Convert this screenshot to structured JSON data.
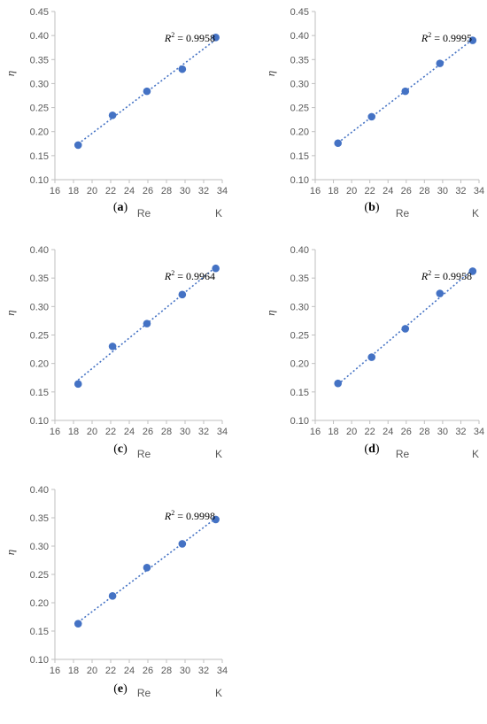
{
  "chart_data": [
    {
      "type": "scatter",
      "panel_label": "a",
      "xlabel": "Re",
      "x_unit": "K",
      "ylabel": "η",
      "xlim": [
        16,
        34
      ],
      "ylim": [
        0.1,
        0.45
      ],
      "x_ticks": [
        "16",
        "18",
        "20",
        "22",
        "24",
        "26",
        "28",
        "30",
        "32",
        "34"
      ],
      "y_ticks": [
        "0.10",
        "0.15",
        "0.20",
        "0.25",
        "0.30",
        "0.35",
        "0.40",
        "0.45"
      ],
      "trendline": "linear",
      "r2_prefix": "R",
      "r2_value": "2 = 0.9958",
      "x": [
        18.5,
        22.2,
        25.9,
        29.7,
        33.3
      ],
      "y": [
        0.172,
        0.234,
        0.284,
        0.33,
        0.396
      ]
    },
    {
      "type": "scatter",
      "panel_label": "b",
      "xlabel": "Re",
      "x_unit": "K",
      "ylabel": "η",
      "xlim": [
        16,
        34
      ],
      "ylim": [
        0.1,
        0.45
      ],
      "x_ticks": [
        "16",
        "18",
        "20",
        "22",
        "24",
        "26",
        "28",
        "30",
        "32",
        "34"
      ],
      "y_ticks": [
        "0.10",
        "0.15",
        "0.20",
        "0.25",
        "0.30",
        "0.35",
        "0.40",
        "0.45"
      ],
      "trendline": "linear",
      "r2_prefix": "R",
      "r2_value": "2 = 0.9995",
      "x": [
        18.5,
        22.2,
        25.9,
        29.7,
        33.3
      ],
      "y": [
        0.176,
        0.231,
        0.284,
        0.342,
        0.39
      ]
    },
    {
      "type": "scatter",
      "panel_label": "c",
      "xlabel": "Re",
      "x_unit": "K",
      "ylabel": "η",
      "xlim": [
        16,
        34
      ],
      "ylim": [
        0.1,
        0.4
      ],
      "x_ticks": [
        "16",
        "18",
        "20",
        "22",
        "24",
        "26",
        "28",
        "30",
        "32",
        "34"
      ],
      "y_ticks": [
        "0.10",
        "0.15",
        "0.20",
        "0.25",
        "0.30",
        "0.35",
        "0.40"
      ],
      "trendline": "linear",
      "r2_prefix": "R",
      "r2_value": "2 = 0.9964",
      "x": [
        18.5,
        22.2,
        25.9,
        29.7,
        33.3
      ],
      "y": [
        0.164,
        0.23,
        0.27,
        0.321,
        0.367
      ]
    },
    {
      "type": "scatter",
      "panel_label": "d",
      "xlabel": "Re",
      "x_unit": "K",
      "ylabel": "η",
      "xlim": [
        16,
        34
      ],
      "ylim": [
        0.1,
        0.4
      ],
      "x_ticks": [
        "16",
        "18",
        "20",
        "22",
        "24",
        "26",
        "28",
        "30",
        "32",
        "34"
      ],
      "y_ticks": [
        "0.10",
        "0.15",
        "0.20",
        "0.25",
        "0.30",
        "0.35",
        "0.40"
      ],
      "trendline": "linear",
      "r2_prefix": "R",
      "r2_value": "2 = 0.9958",
      "x": [
        18.5,
        22.2,
        25.9,
        29.7,
        33.3
      ],
      "y": [
        0.165,
        0.211,
        0.261,
        0.323,
        0.362
      ]
    },
    {
      "type": "scatter",
      "panel_label": "e",
      "xlabel": "Re",
      "x_unit": "K",
      "ylabel": "η",
      "xlim": [
        16,
        34
      ],
      "ylim": [
        0.1,
        0.4
      ],
      "x_ticks": [
        "16",
        "18",
        "20",
        "22",
        "24",
        "26",
        "28",
        "30",
        "32",
        "34"
      ],
      "y_ticks": [
        "0.10",
        "0.15",
        "0.20",
        "0.25",
        "0.30",
        "0.35",
        "0.40"
      ],
      "trendline": "linear",
      "r2_prefix": "R",
      "r2_value": "2 = 0.9998",
      "x": [
        18.5,
        22.2,
        25.9,
        29.7,
        33.3
      ],
      "y": [
        0.163,
        0.212,
        0.262,
        0.304,
        0.347
      ]
    }
  ],
  "colors": {
    "marker": "#4472C4",
    "trendline": "#4472C4",
    "axis": "#bfbfbf",
    "tick_text": "#595959"
  }
}
